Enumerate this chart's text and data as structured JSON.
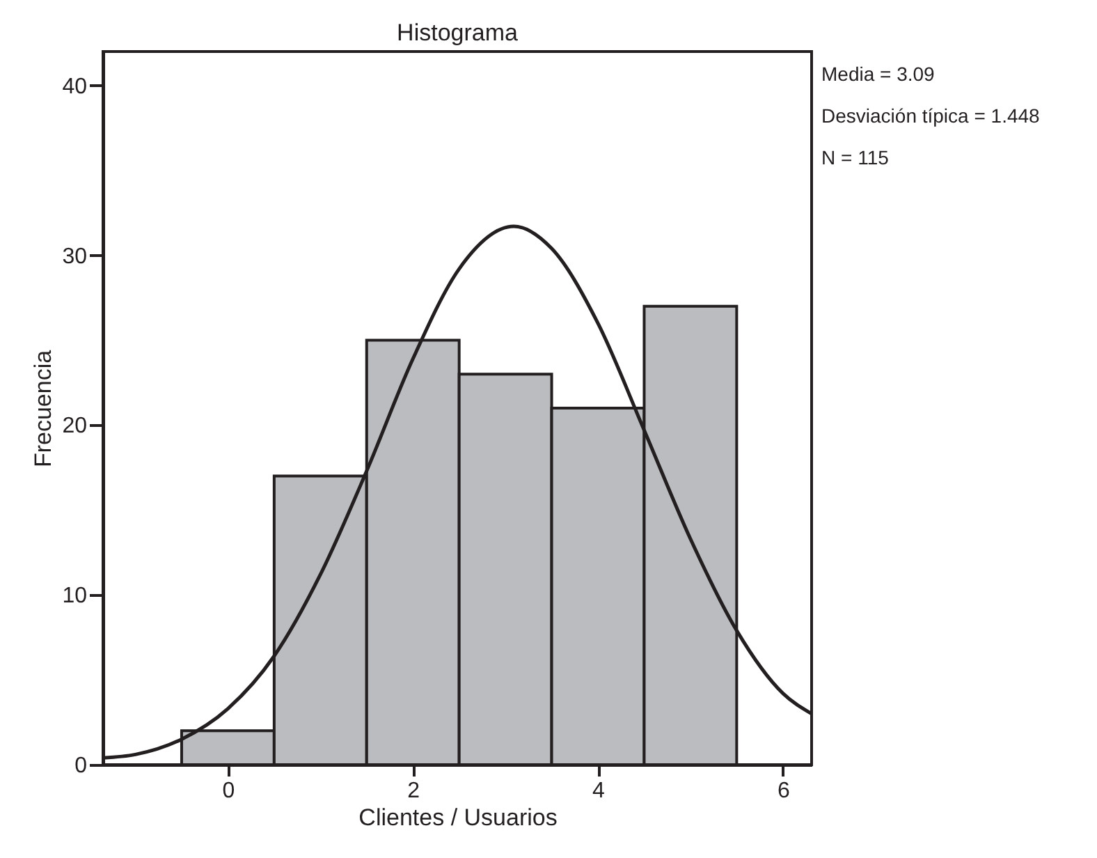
{
  "chart_data": {
    "type": "histogram",
    "title": "Histograma",
    "xlabel": "Clientes / Usuarios",
    "ylabel": "Frecuencia",
    "bins": [
      -0.5,
      0.5,
      1.5,
      2.5,
      3.5,
      4.5,
      5.5
    ],
    "values": [
      2,
      17,
      25,
      23,
      21,
      27
    ],
    "color": "#bbbcbf",
    "series": [
      {
        "type": "line",
        "color": "#231f20",
        "x": [
          -1.35,
          -1,
          -0.5,
          0,
          0.5,
          1,
          1.5,
          2,
          2.5,
          3.09,
          3.5,
          4,
          4.5,
          5,
          5.5,
          6,
          6.31
        ],
        "values": [
          0.4,
          0.6,
          1.5,
          3.3,
          6.4,
          11.2,
          17.3,
          23.9,
          29.2,
          31.7,
          30.4,
          26,
          19.7,
          13.3,
          7.9,
          4.2,
          3
        ]
      }
    ],
    "xlim": [
      -1.35,
      6.31
    ],
    "xticks": [
      0,
      2,
      4,
      6
    ],
    "ylim": [
      0,
      42
    ],
    "yticks": [
      0,
      10,
      20,
      30,
      40
    ],
    "grid": false,
    "annotations": [
      "Media = 3.09",
      "Desviación típica = 1.448",
      "N = 115"
    ]
  }
}
